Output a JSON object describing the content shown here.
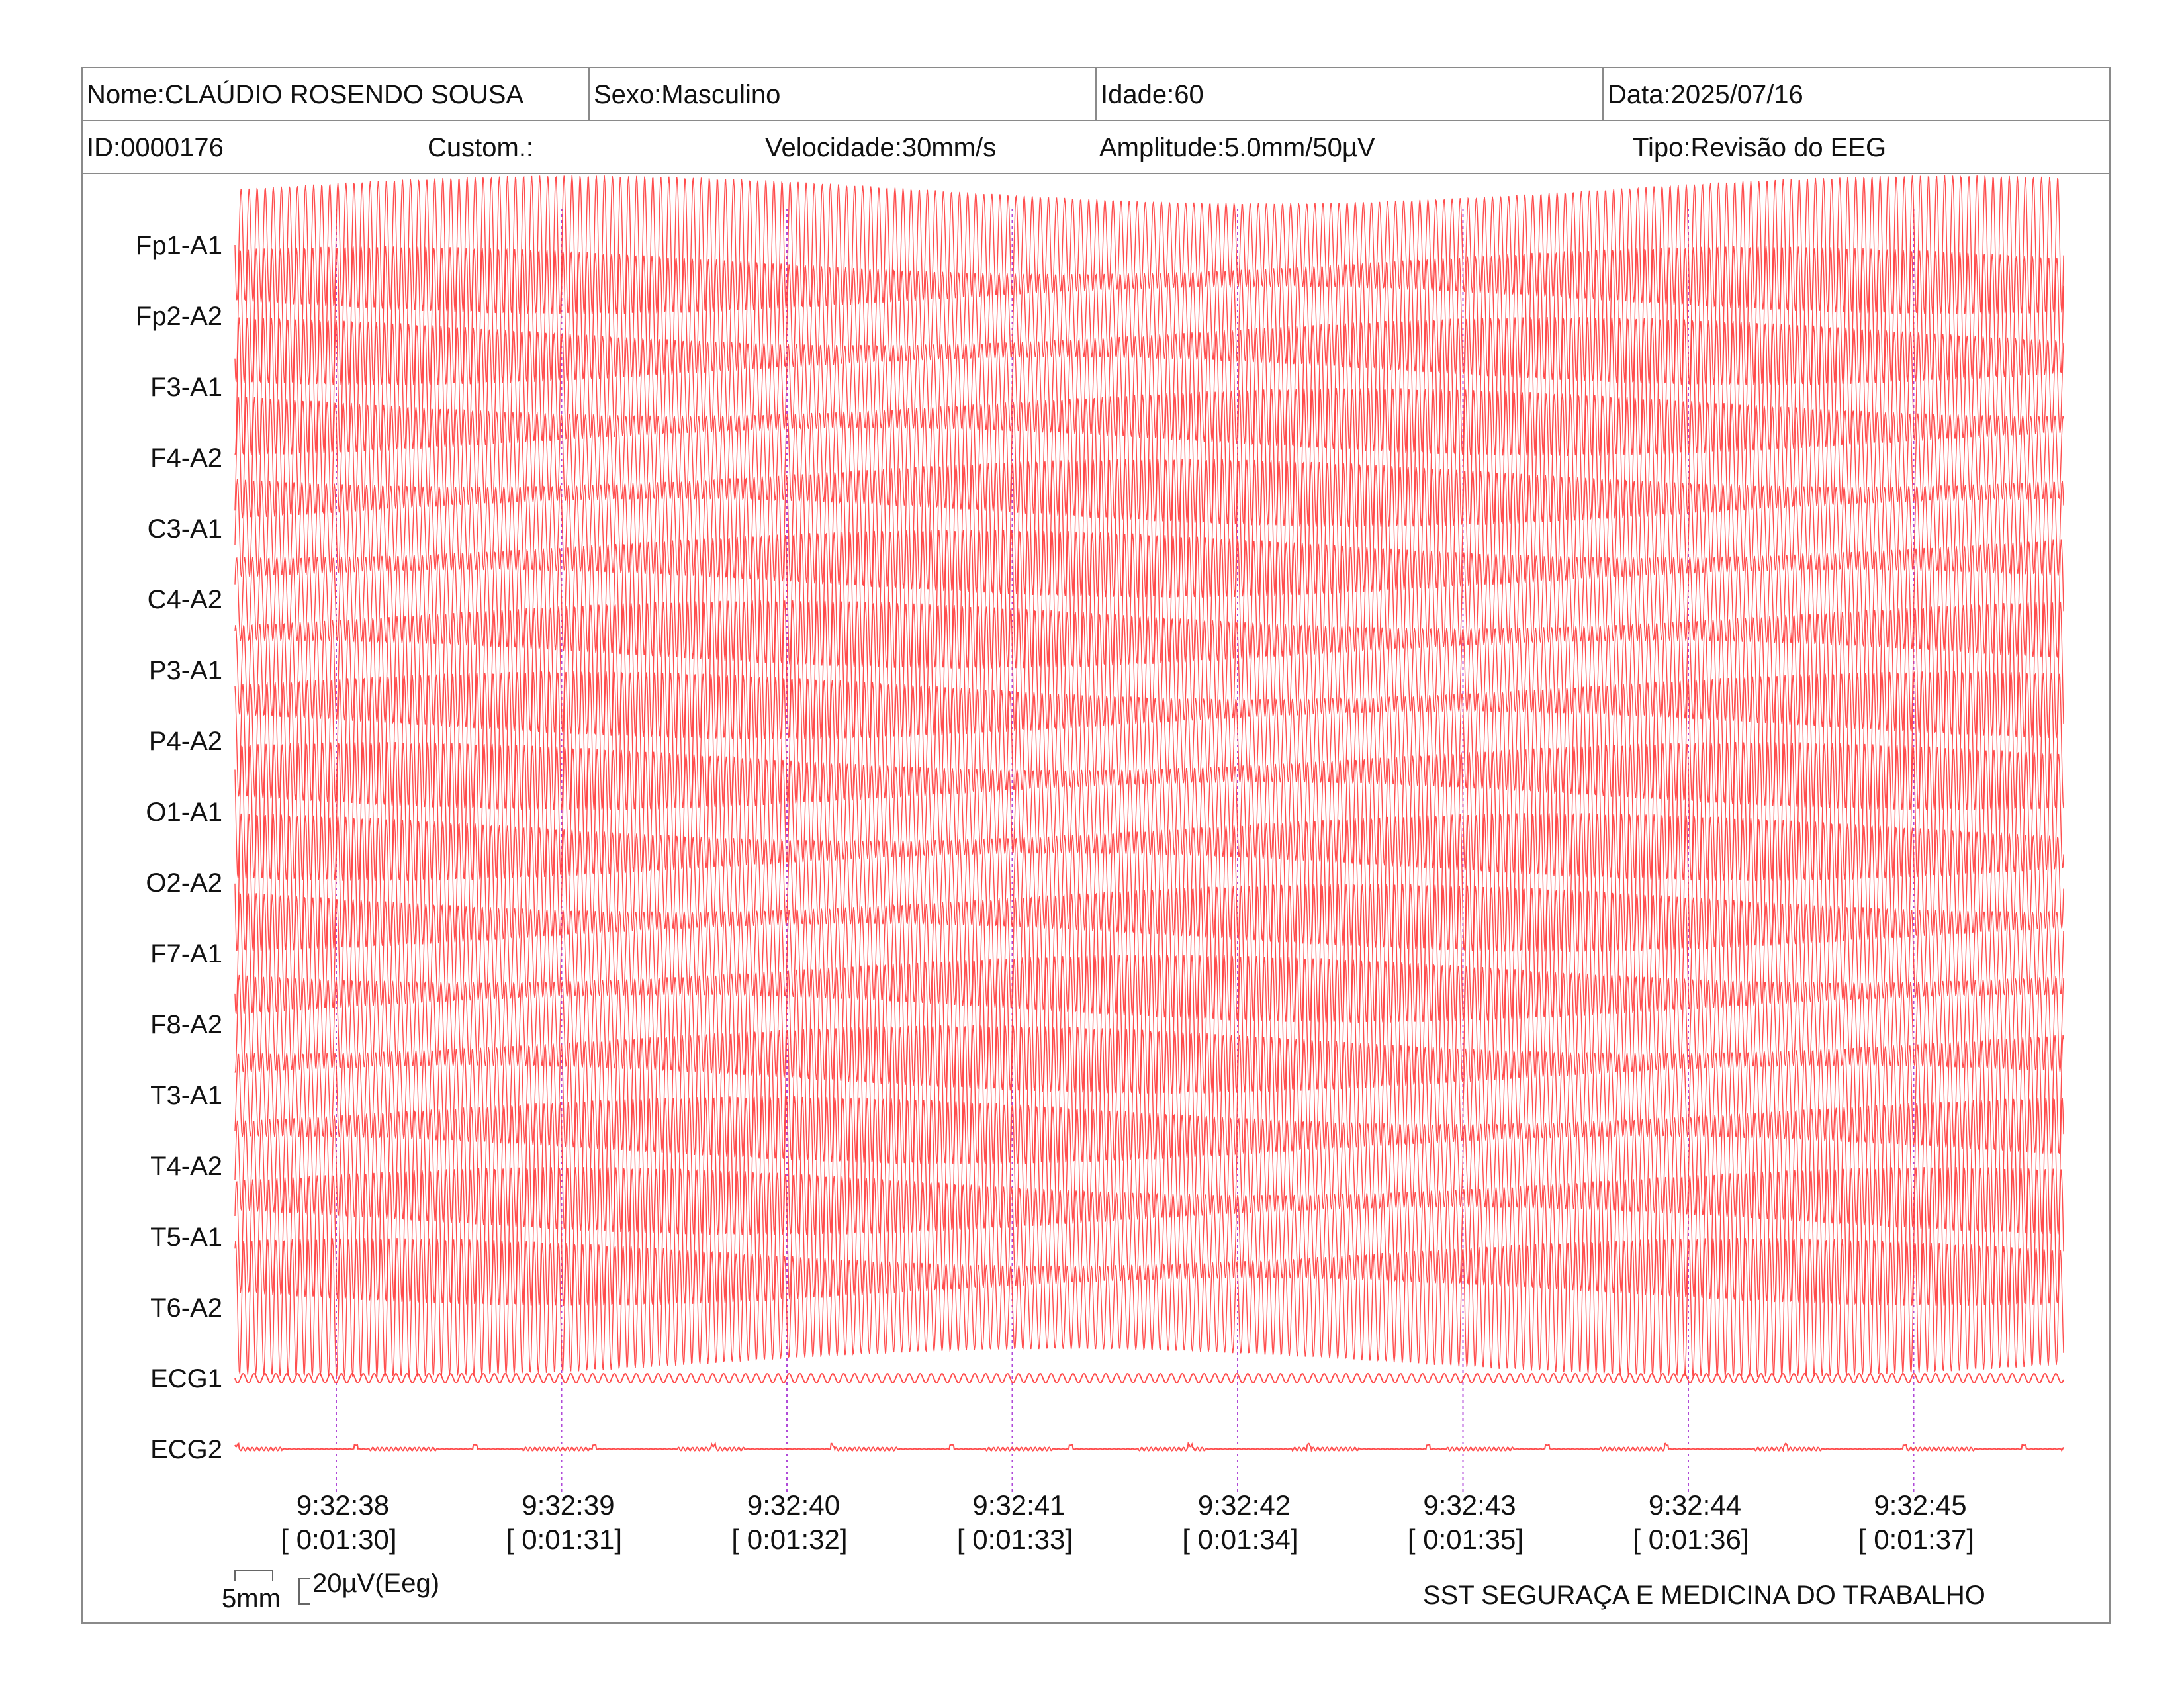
{
  "header": {
    "nome": "Nome:CLAÚDIO ROSENDO SOUSA",
    "sexo": "Sexo:Masculino",
    "idade": "Idade:60",
    "data": "Data:2025/07/16",
    "id": "ID:0000176",
    "custom": "Custom.:",
    "velocidade": "Velocidade:30mm/s",
    "amplitude": "Amplitude:5.0mm/50µV",
    "tipo": "Tipo:Revisão do EEG"
  },
  "scale": {
    "time_label": "5mm",
    "amp_label": "20µV(Eeg)"
  },
  "footer": {
    "organization": "SST SEGURAÇA E MEDICINA DO TRABALHO"
  },
  "colors": {
    "trace": "#ff3b3b",
    "marker": "#b04ad8",
    "border": "#8a8a8a"
  },
  "chart_data": {
    "type": "line",
    "channels": [
      "Fp1-A1",
      "Fp2-A2",
      "F3-A1",
      "F4-A2",
      "C3-A1",
      "C4-A2",
      "P3-A1",
      "P4-A2",
      "O1-A1",
      "O2-A2",
      "F7-A1",
      "F8-A2",
      "T3-A1",
      "T4-A2",
      "T5-A1",
      "T6-A2",
      "ECG1",
      "ECG2"
    ],
    "time_markers": [
      {
        "clock": "9:32:38",
        "elapsed": "[ 0:01:30]"
      },
      {
        "clock": "9:32:39",
        "elapsed": "[ 0:01:31]"
      },
      {
        "clock": "9:32:40",
        "elapsed": "[ 0:01:32]"
      },
      {
        "clock": "9:32:41",
        "elapsed": "[ 0:01:33]"
      },
      {
        "clock": "9:32:42",
        "elapsed": "[ 0:01:34]"
      },
      {
        "clock": "9:32:43",
        "elapsed": "[ 0:01:35]"
      },
      {
        "clock": "9:32:44",
        "elapsed": "[ 0:01:36]"
      },
      {
        "clock": "9:32:45",
        "elapsed": "[ 0:01:37]"
      }
    ],
    "speed_mm_per_s": 30,
    "amplitude_uV": 50
  }
}
